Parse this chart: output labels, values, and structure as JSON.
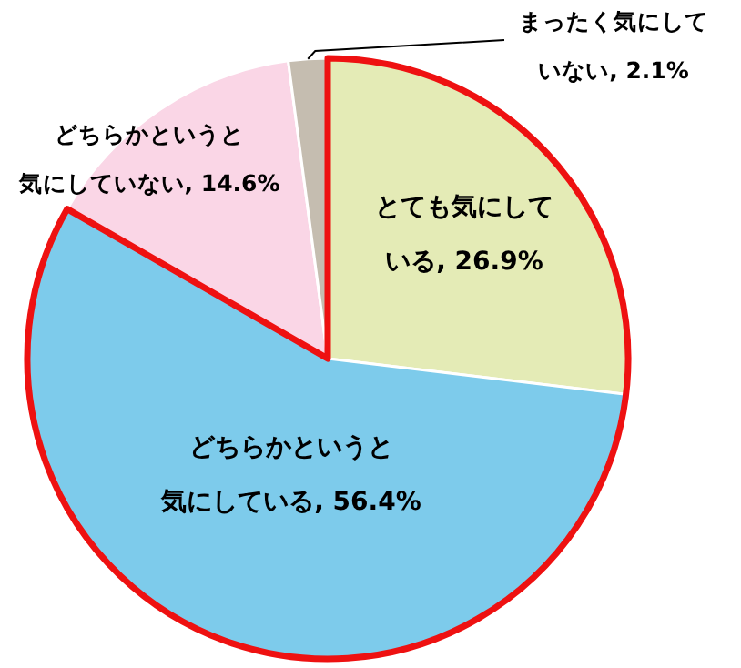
{
  "chart_data": {
    "type": "pie",
    "categories": [
      "とても気にしている",
      "どちらかというと気にしている",
      "どちらかというと気にしていない",
      "まったく気にしていない"
    ],
    "values": [
      26.9,
      56.4,
      14.6,
      2.1
    ],
    "colors": [
      "#e4ebb6",
      "#7dcbeb",
      "#fad6e6",
      "#c5bdb0"
    ],
    "value_labels": [
      "26.9%",
      "56.4%",
      "14.6%",
      "2.1%"
    ]
  }
}
